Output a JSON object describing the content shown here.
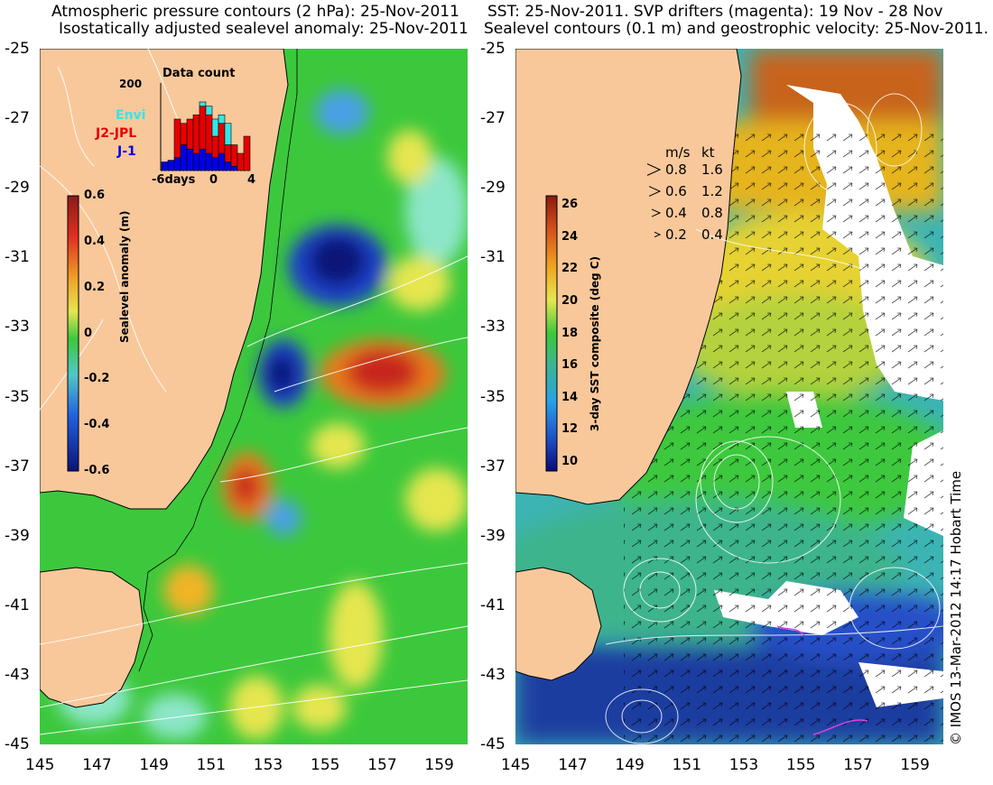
{
  "left_panel": {
    "title_line1": "Atmospheric pressure contours (2 hPa): 25-Nov-2011",
    "title_line2": "Isostatically adjusted sealevel anomaly: 25-Nov-2011",
    "colorbar_label": "Sealevel anomaly (m)",
    "colorbar_ticks": [
      "0.6",
      "0.4",
      "0.2",
      "0",
      "-0.2",
      "-0.4",
      "-0.6"
    ],
    "inset": {
      "title": "Data count",
      "ymax_label": "200",
      "x_labels": [
        "-6days",
        "0",
        "4"
      ],
      "legend": [
        {
          "label": "Envi",
          "color": "#33e6e6"
        },
        {
          "label": "J2-JPL",
          "color": "#e60000"
        },
        {
          "label": "J-1",
          "color": "#0000e6"
        }
      ],
      "bars": [
        {
          "blue": 0.1,
          "red": 0.0,
          "cyan": 0.0
        },
        {
          "blue": 0.12,
          "red": 0.0,
          "cyan": 0.0
        },
        {
          "blue": 0.15,
          "red": 0.45,
          "cyan": 0.0
        },
        {
          "blue": 0.3,
          "red": 0.25,
          "cyan": 0.0
        },
        {
          "blue": 0.25,
          "red": 0.35,
          "cyan": 0.0
        },
        {
          "blue": 0.2,
          "red": 0.45,
          "cyan": 0.0
        },
        {
          "blue": 0.25,
          "red": 0.5,
          "cyan": 0.05
        },
        {
          "blue": 0.2,
          "red": 0.45,
          "cyan": 0.1
        },
        {
          "blue": 0.15,
          "red": 0.25,
          "cyan": 0.2
        },
        {
          "blue": 0.2,
          "red": 0.35,
          "cyan": 0.1
        },
        {
          "blue": 0.1,
          "red": 0.2,
          "cyan": 0.25
        },
        {
          "blue": 0.05,
          "red": 0.25,
          "cyan": 0.0
        },
        {
          "blue": 0.0,
          "red": 0.2,
          "cyan": 0.0
        },
        {
          "blue": 0.0,
          "red": 0.4,
          "cyan": 0.0
        }
      ]
    }
  },
  "right_panel": {
    "title_line1": "SST: 25-Nov-2011. SVP drifters (magenta): 19 Nov - 28 Nov",
    "title_line2": "Sealevel contours (0.1 m) and geostrophic velocity: 25-Nov-2011.",
    "colorbar_label": "3-day SST composite (deg C)",
    "colorbar_ticks": [
      "26",
      "24",
      "22",
      "20",
      "18",
      "16",
      "14",
      "12",
      "10"
    ],
    "velocity_legend": {
      "header_ms": "m/s",
      "header_kt": "kt",
      "rows": [
        {
          "ms": "0.8",
          "kt": "1.6"
        },
        {
          "ms": "0.6",
          "kt": "1.2"
        },
        {
          "ms": "0.4",
          "kt": "0.8"
        },
        {
          "ms": "0.2",
          "kt": "0.4"
        }
      ]
    }
  },
  "y_axis_ticks": [
    "-25",
    "-27",
    "-29",
    "-31",
    "-33",
    "-35",
    "-37",
    "-39",
    "-41",
    "-43",
    "-45"
  ],
  "x_axis_ticks": [
    "145",
    "147",
    "149",
    "151",
    "153",
    "155",
    "157",
    "159"
  ],
  "credit": "© IMOS 13-Mar-2012 14:17 Hobart Time",
  "colors": {
    "land": "#f8c89b",
    "ocean_green": "#3cc83c",
    "warm": "#d47a1e",
    "cold": "#1e3fb4"
  }
}
